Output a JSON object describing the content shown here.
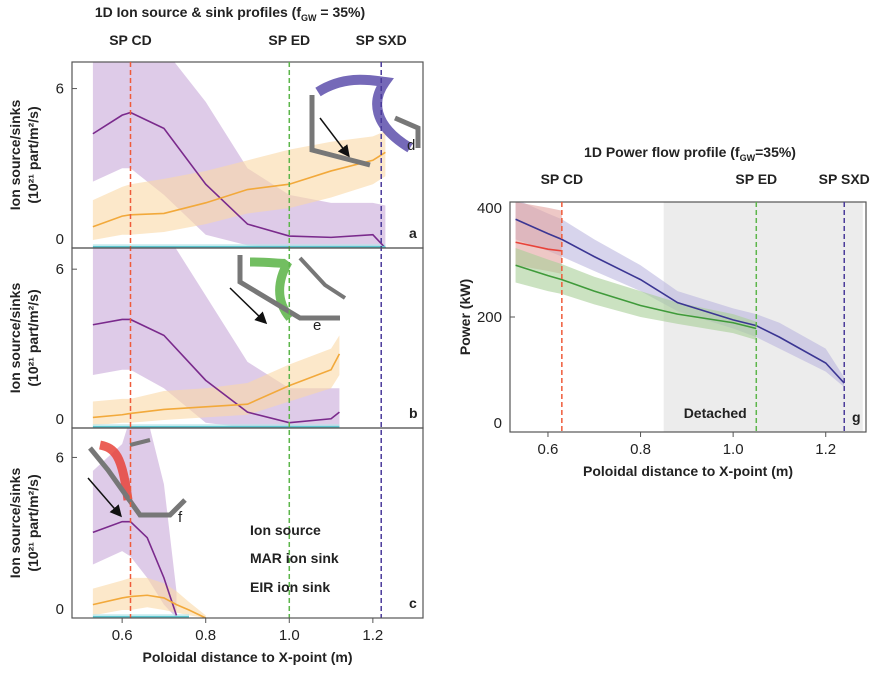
{
  "chart_data": [
    {
      "type": "line",
      "title": [
        "1D Ion source & sink profiles (f",
        "GW",
        " = 35%)"
      ],
      "ylabel": [
        "Ion source/sinks",
        "(10²¹ part/m²/s)"
      ],
      "letter": "a",
      "xlim": [
        0.48,
        1.32
      ],
      "ylim": [
        0,
        7
      ],
      "yticks": [
        0,
        6
      ],
      "markers": [
        {
          "label": "SP CD",
          "x": 0.62,
          "color": "#ef5b3a"
        },
        {
          "label": "SP ED",
          "x": 1.0,
          "color": "#5cb64a"
        },
        {
          "label": "SP SXD",
          "x": 1.22,
          "color": "#4a3a9a"
        }
      ],
      "x": [
        0.53,
        0.6,
        0.62,
        0.7,
        0.8,
        0.9,
        1.0,
        1.1,
        1.2,
        1.23
      ],
      "series": [
        {
          "color": "#7a2a8c",
          "band_color": "#c8a8d8",
          "values": [
            4.3,
            5.0,
            5.1,
            4.5,
            2.4,
            0.9,
            0.45,
            0.4,
            0.5,
            0.0
          ],
          "band_low": [
            2.5,
            3.0,
            3.0,
            2.0,
            0.5,
            0.1,
            0,
            0,
            0,
            0
          ],
          "band_high": [
            7.5,
            7.5,
            7.5,
            7.5,
            5.5,
            3.0,
            2.0,
            1.7,
            1.7,
            1.6
          ]
        },
        {
          "color": "#f2a93b",
          "band_color": "#fad9a6",
          "values": [
            0.8,
            1.2,
            1.25,
            1.3,
            1.7,
            2.2,
            2.4,
            2.9,
            3.3,
            3.6
          ],
          "band_low": [
            0.3,
            0.5,
            0.5,
            0.6,
            0.9,
            1.3,
            1.5,
            1.9,
            2.4,
            2.7
          ],
          "band_high": [
            1.8,
            2.3,
            2.4,
            2.6,
            2.9,
            3.3,
            3.7,
            4.0,
            4.2,
            4.4
          ]
        },
        {
          "color": "#5cc6cf",
          "band_color": "#b8e6ea",
          "values": [
            0.05,
            0.05,
            0.05,
            0.05,
            0.05,
            0.05,
            0.05,
            0.05,
            0.05,
            0.05
          ],
          "band_low": [
            0,
            0,
            0,
            0,
            0,
            0,
            0,
            0,
            0,
            0
          ],
          "band_high": [
            0.15,
            0.15,
            0.15,
            0.15,
            0.15,
            0.15,
            0.15,
            0.15,
            0.15,
            0.15
          ]
        }
      ]
    },
    {
      "type": "line",
      "ylabel": [
        "Ion source/sinks",
        "(10²¹ part/m²/s)"
      ],
      "letter": "b",
      "xlim": [
        0.48,
        1.32
      ],
      "ylim": [
        0,
        6.8
      ],
      "yticks": [
        0,
        6
      ],
      "x": [
        0.53,
        0.6,
        0.62,
        0.7,
        0.8,
        0.9,
        1.0,
        1.1,
        1.12
      ],
      "series": [
        {
          "color": "#7a2a8c",
          "band_color": "#c8a8d8",
          "values": [
            3.9,
            4.1,
            4.1,
            3.5,
            1.8,
            0.6,
            0.2,
            0.35,
            0.6
          ],
          "band_low": [
            2.0,
            2.2,
            2.2,
            1.5,
            0.2,
            0,
            0,
            0,
            0
          ],
          "band_high": [
            7.5,
            7.5,
            7.5,
            7.5,
            5.0,
            2.5,
            1.5,
            1.5,
            1.5
          ]
        },
        {
          "color": "#f2a93b",
          "band_color": "#fad9a6",
          "values": [
            0.4,
            0.5,
            0.55,
            0.7,
            0.8,
            0.9,
            1.6,
            2.2,
            2.8
          ],
          "band_low": [
            0.1,
            0.2,
            0.2,
            0.3,
            0.4,
            0.5,
            1.0,
            1.5,
            2.0
          ],
          "band_high": [
            1.0,
            1.1,
            1.1,
            1.4,
            1.5,
            1.7,
            2.4,
            3.0,
            3.5
          ]
        },
        {
          "color": "#5cc6cf",
          "band_color": "#b8e6ea",
          "values": [
            0.05,
            0.05,
            0.05,
            0.05,
            0.05,
            0.05,
            0.05,
            0.05,
            0.05
          ],
          "band_low": [
            0,
            0,
            0,
            0,
            0,
            0,
            0,
            0,
            0
          ],
          "band_high": [
            0.15,
            0.15,
            0.15,
            0.15,
            0.15,
            0.15,
            0.15,
            0.15,
            0.15
          ]
        }
      ]
    },
    {
      "type": "line",
      "ylabel": [
        "Ion source/sinks",
        "(10²¹ part/m²/s)"
      ],
      "xlabel": "Poloidal distance to X-point (m)",
      "letter": "c",
      "xlim": [
        0.48,
        1.32
      ],
      "ylim": [
        0,
        7.1
      ],
      "yticks": [
        0,
        6
      ],
      "xticks": [
        0.6,
        0.8,
        {
          "value": 1.0,
          "label": "1.0"
        },
        1.2
      ],
      "x": [
        0.53,
        0.6,
        0.62,
        0.66,
        0.7,
        0.73,
        0.76,
        0.8
      ],
      "series": [
        {
          "name": "Ion source",
          "color": "#7a2a8c",
          "band_color": "#c8a8d8",
          "values": [
            3.2,
            3.6,
            3.6,
            3.0,
            1.5,
            0.1,
            null,
            null
          ],
          "band_low": [
            2.0,
            2.5,
            2.3,
            1.5,
            0.5,
            0,
            null,
            null
          ],
          "band_high": [
            5.5,
            6.5,
            7.5,
            7.5,
            5.0,
            1.0,
            null,
            null
          ]
        },
        {
          "name": "MAR ion sink",
          "color": "#f2a93b",
          "band_color": "#fad9a6",
          "values": [
            0.5,
            0.75,
            0.8,
            0.85,
            0.75,
            0.5,
            0.3,
            0.0
          ],
          "band_low": [
            0.1,
            0.3,
            0.3,
            0.4,
            0.3,
            0.2,
            0.1,
            0
          ],
          "band_high": [
            1.1,
            1.4,
            1.5,
            1.5,
            1.3,
            1.0,
            0.6,
            0.1
          ]
        },
        {
          "name": "EIR ion sink",
          "color": "#5cc6cf",
          "band_color": "#b8e6ea",
          "values": [
            0.05,
            0.05,
            0.05,
            0.05,
            0.05,
            0.05,
            0.05,
            null
          ],
          "band_low": [
            0,
            0,
            0,
            0,
            0,
            0,
            0,
            null
          ],
          "band_high": [
            0.15,
            0.15,
            0.15,
            0.15,
            0.15,
            0.15,
            0.15,
            null
          ]
        }
      ]
    },
    {
      "type": "line",
      "title": [
        "1D Power flow profile (f",
        "GW",
        "=35%)"
      ],
      "ylabel": [
        "Power (kW)"
      ],
      "xlabel": "Poloidal distance to X-point (m)",
      "letter": "g",
      "shade": {
        "label": "Detached",
        "x": [
          0.85,
          1.28
        ]
      },
      "xlim": [
        0.518,
        1.287
      ],
      "ylim": [
        0,
        400
      ],
      "yticks": [
        0,
        200,
        400
      ],
      "xticks": [
        0.6,
        0.8,
        {
          "value": 1.0,
          "label": "1.0"
        },
        1.2
      ],
      "markers": [
        {
          "label": "SP CD",
          "x": 0.63,
          "color": "#ef5b3a"
        },
        {
          "label": "SP ED",
          "x": 1.05,
          "color": "#5cb64a"
        },
        {
          "label": "SP SXD",
          "x": 1.24,
          "color": "#4a3a9a"
        }
      ],
      "x": [
        0.53,
        0.6,
        0.63,
        0.7,
        0.8,
        0.88,
        1.0,
        1.05,
        1.1,
        1.2,
        1.24
      ],
      "series": [
        {
          "color": "#3b3693",
          "band_color": "#bdb7e0",
          "values": [
            370,
            345,
            335,
            305,
            265,
            225,
            195,
            185,
            165,
            120,
            85
          ],
          "band_low": [
            335,
            315,
            305,
            280,
            245,
            210,
            180,
            165,
            145,
            105,
            78
          ],
          "band_high": [
            405,
            380,
            370,
            335,
            290,
            245,
            215,
            205,
            190,
            145,
            95
          ]
        },
        {
          "color": "#e8433a",
          "band_color": "#e3a3a0",
          "values": [
            330,
            318,
            315,
            null,
            null,
            null,
            null,
            null,
            null,
            null,
            null
          ],
          "band_low": [
            290,
            280,
            275,
            null,
            null,
            null,
            null,
            null,
            null,
            null,
            null
          ],
          "band_high": [
            400,
            390,
            385,
            null,
            null,
            null,
            null,
            null,
            null,
            null,
            null
          ]
        },
        {
          "color": "#3f9a3a",
          "band_color": "#a9cf98",
          "values": [
            290,
            272,
            265,
            245,
            220,
            205,
            190,
            180,
            null,
            null,
            null
          ],
          "band_low": [
            260,
            245,
            240,
            222,
            200,
            188,
            172,
            160,
            null,
            null,
            null
          ],
          "band_high": [
            320,
            300,
            292,
            270,
            245,
            225,
            205,
            192,
            null,
            null,
            null
          ]
        }
      ]
    }
  ]
}
